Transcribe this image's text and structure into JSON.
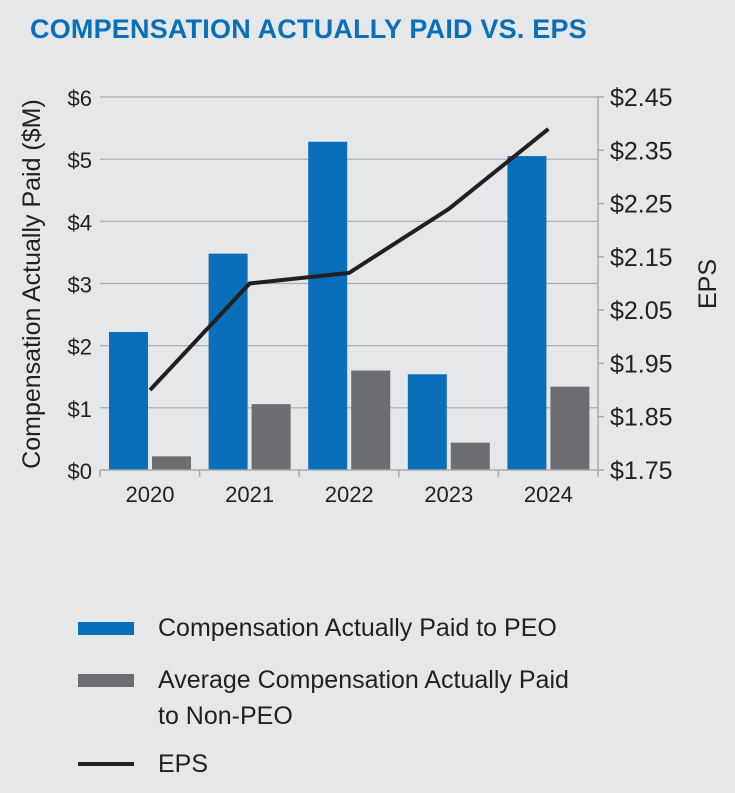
{
  "title": "COMPENSATION ACTUALLY PAID VS. EPS",
  "colors": {
    "peo": "#0a6fba",
    "non_peo": "#6d6e71",
    "eps": "#231f20",
    "grid": "#a7a9ac",
    "title": "#0a6fba"
  },
  "chart_data": {
    "type": "bar",
    "categories": [
      "2020",
      "2021",
      "2022",
      "2023",
      "2024"
    ],
    "series": [
      {
        "name": "Compensation Actually Paid to PEO",
        "type": "bar",
        "axis": "left",
        "values": [
          2.22,
          3.48,
          5.28,
          1.54,
          5.05
        ]
      },
      {
        "name": "Average Compensation Actually Paid to Non-PEO",
        "type": "bar",
        "axis": "left",
        "values": [
          0.22,
          1.06,
          1.6,
          0.44,
          1.34
        ]
      },
      {
        "name": "EPS",
        "type": "line",
        "axis": "right",
        "values": [
          1.9,
          2.1,
          2.12,
          2.24,
          2.39
        ]
      }
    ],
    "left_axis": {
      "label": "Compensation Actually Paid ($M)",
      "ylim": [
        0,
        6
      ],
      "ticks": [
        0,
        1,
        2,
        3,
        4,
        5,
        6
      ],
      "tick_labels": [
        "$0",
        "$1",
        "$2",
        "$3",
        "$4",
        "$5",
        "$6"
      ]
    },
    "right_axis": {
      "label": "EPS",
      "ylim": [
        1.75,
        2.45
      ],
      "ticks": [
        1.75,
        1.85,
        1.95,
        2.05,
        2.15,
        2.25,
        2.35,
        2.45
      ],
      "tick_labels": [
        "$1.75",
        "$1.85",
        "$1.95",
        "$2.05",
        "$2.15",
        "$2.25",
        "$2.35",
        "$2.45"
      ]
    },
    "grid": true,
    "legend": {
      "placement": "bottom",
      "items": [
        {
          "label_lines": [
            "Compensation Actually Paid to PEO"
          ],
          "kind": "bar",
          "series": 0
        },
        {
          "label_lines": [
            "Average Compensation Actually Paid",
            "to Non-PEO"
          ],
          "kind": "bar",
          "series": 1
        },
        {
          "label_lines": [
            "EPS"
          ],
          "kind": "line",
          "series": 2
        }
      ]
    }
  }
}
